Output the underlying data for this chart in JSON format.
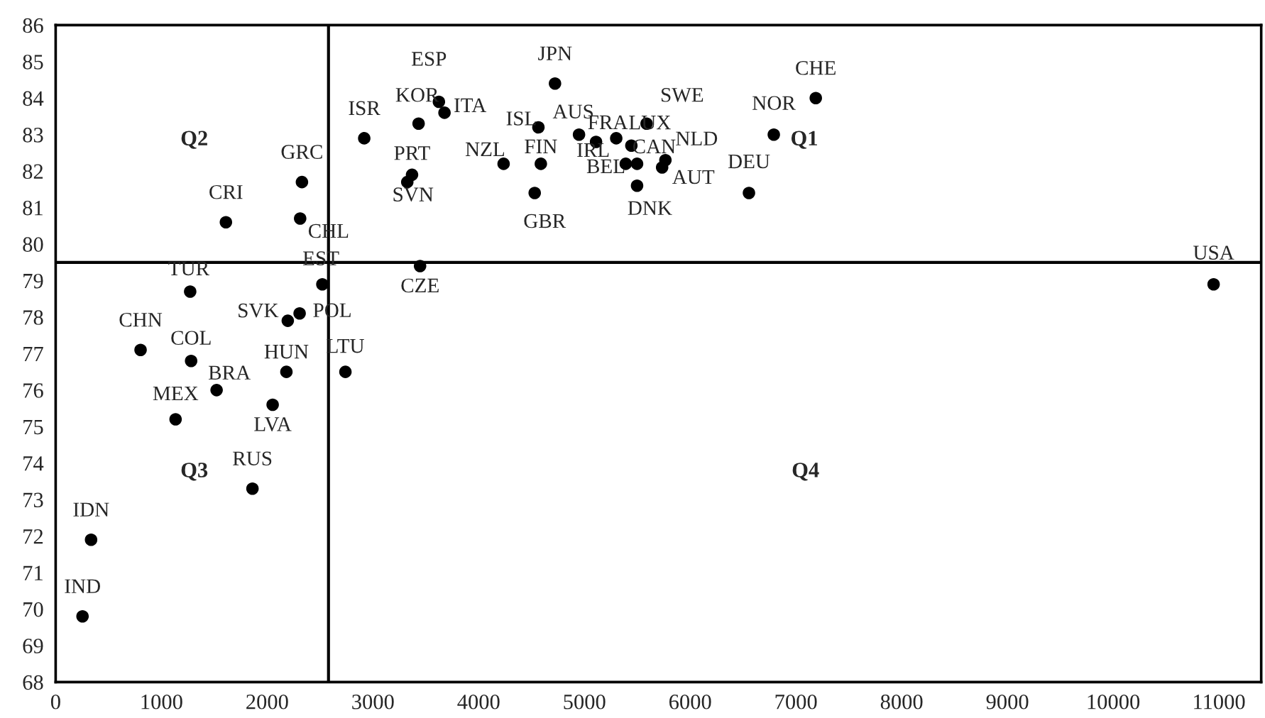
{
  "chart_data": {
    "type": "scatter",
    "x": [
      3624,
      3677,
      3432,
      2918,
      4722,
      4565,
      4949,
      5110,
      5301,
      5444,
      5588,
      5391,
      5498,
      5766,
      5735,
      5498,
      4236,
      4588,
      4530,
      3370,
      3325,
      3446,
      7188,
      6791,
      6556,
      10950,
      2329,
      2312,
      1610,
      1272,
      2522,
      2195,
      2307,
      803,
      1281,
      2182,
      2740,
      1522,
      2052,
      1134,
      1861,
      335,
      254
    ],
    "series": [
      {
        "color": "#000000",
        "values": [
          83.9,
          83.6,
          83.3,
          82.9,
          84.4,
          83.2,
          83.0,
          82.8,
          82.9,
          82.7,
          83.3,
          82.2,
          82.2,
          82.3,
          82.1,
          81.6,
          82.2,
          82.2,
          81.4,
          81.9,
          81.7,
          79.4,
          84.0,
          83.0,
          81.4,
          78.9,
          81.7,
          80.7,
          80.6,
          78.7,
          78.9,
          77.9,
          78.1,
          77.1,
          76.8,
          76.5,
          76.5,
          76.0,
          75.6,
          75.2,
          73.3,
          71.9,
          69.8
        ]
      }
    ],
    "marker": "circle",
    "xlim": [
      0,
      11400
    ],
    "ylim": [
      68,
      86
    ],
    "xticks": [
      0,
      1000,
      2000,
      3000,
      4000,
      5000,
      6000,
      7000,
      8000,
      9000,
      10000,
      11000
    ],
    "yticks": [
      68,
      69,
      70,
      71,
      72,
      73,
      74,
      75,
      76,
      77,
      78,
      79,
      80,
      81,
      82,
      83,
      84,
      85,
      86
    ],
    "grid": false,
    "legend": false,
    "ref_lines": [
      {
        "axis": "x",
        "value": 2580,
        "color": "#000000"
      },
      {
        "axis": "y",
        "value": 79.5,
        "color": "#000000"
      }
    ],
    "annotations": [
      {
        "text": "ESP",
        "x": 3624,
        "y": 83.9
      },
      {
        "text": "ITA",
        "x": 3677,
        "y": 83.6
      },
      {
        "text": "KOR",
        "x": 3432,
        "y": 83.3
      },
      {
        "text": "ISR",
        "x": 2918,
        "y": 82.9
      },
      {
        "text": "JPN",
        "x": 4722,
        "y": 84.4
      },
      {
        "text": "ISL",
        "x": 4565,
        "y": 83.2
      },
      {
        "text": "AUS",
        "x": 4949,
        "y": 83.0
      },
      {
        "text": "IRL",
        "x": 5110,
        "y": 82.8
      },
      {
        "text": "FRA",
        "x": 5301,
        "y": 82.9
      },
      {
        "text": "LUX",
        "x": 5444,
        "y": 82.7
      },
      {
        "text": "SWE",
        "x": 5588,
        "y": 83.3
      },
      {
        "text": "BEL",
        "x": 5391,
        "y": 82.2
      },
      {
        "text": "CAN",
        "x": 5498,
        "y": 82.2
      },
      {
        "text": "NLD",
        "x": 5766,
        "y": 82.3
      },
      {
        "text": "AUT",
        "x": 5735,
        "y": 82.1
      },
      {
        "text": "DNK",
        "x": 5498,
        "y": 81.6
      },
      {
        "text": "NZL",
        "x": 4236,
        "y": 82.2
      },
      {
        "text": "FIN",
        "x": 4588,
        "y": 82.2
      },
      {
        "text": "GBR",
        "x": 4530,
        "y": 81.4
      },
      {
        "text": "PRT",
        "x": 3370,
        "y": 81.9
      },
      {
        "text": "SVN",
        "x": 3325,
        "y": 81.7
      },
      {
        "text": "CZE",
        "x": 3446,
        "y": 79.4
      },
      {
        "text": "CHE",
        "x": 7188,
        "y": 84.0
      },
      {
        "text": "NOR",
        "x": 6791,
        "y": 83.0
      },
      {
        "text": "DEU",
        "x": 6556,
        "y": 81.4
      },
      {
        "text": "USA",
        "x": 10950,
        "y": 78.9
      },
      {
        "text": "GRC",
        "x": 2329,
        "y": 81.7
      },
      {
        "text": "CHL",
        "x": 2312,
        "y": 80.7
      },
      {
        "text": "CRI",
        "x": 1610,
        "y": 80.6
      },
      {
        "text": "TUR",
        "x": 1272,
        "y": 78.7
      },
      {
        "text": "EST",
        "x": 2522,
        "y": 78.9
      },
      {
        "text": "SVK",
        "x": 2195,
        "y": 77.9
      },
      {
        "text": "POL",
        "x": 2307,
        "y": 78.1
      },
      {
        "text": "CHN",
        "x": 803,
        "y": 77.1
      },
      {
        "text": "COL",
        "x": 1281,
        "y": 76.8
      },
      {
        "text": "HUN",
        "x": 2182,
        "y": 76.5
      },
      {
        "text": "LTU",
        "x": 2740,
        "y": 76.5
      },
      {
        "text": "BRA",
        "x": 1522,
        "y": 76.0
      },
      {
        "text": "LVA",
        "x": 2052,
        "y": 75.6
      },
      {
        "text": "MEX",
        "x": 1134,
        "y": 75.2
      },
      {
        "text": "RUS",
        "x": 1861,
        "y": 73.3
      },
      {
        "text": "IDN",
        "x": 335,
        "y": 71.9
      },
      {
        "text": "IND",
        "x": 254,
        "y": 69.8
      },
      "Q1",
      "Q2",
      "Q3",
      "Q4"
    ]
  }
}
